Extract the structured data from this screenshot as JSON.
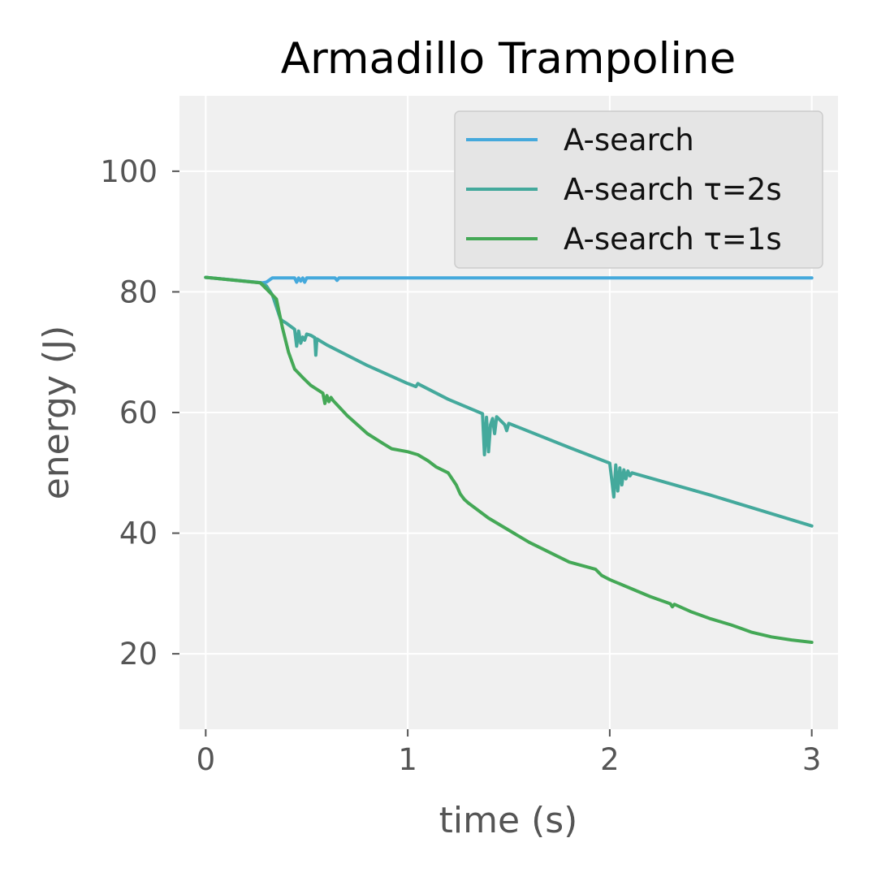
{
  "chart_data": {
    "type": "line",
    "title": "Armadillo Trampoline",
    "xlabel": "time (s)",
    "ylabel": "energy (J)",
    "xlim": [
      -0.13,
      3.13
    ],
    "ylim": [
      7.5,
      112.5
    ],
    "xticks": [
      0,
      1,
      2,
      3
    ],
    "yticks": [
      20,
      40,
      60,
      80,
      100
    ],
    "xtick_labels": [
      "0",
      "1",
      "2",
      "3"
    ],
    "ytick_labels": [
      "20",
      "40",
      "60",
      "80",
      "100"
    ],
    "grid": true,
    "legend_position": "top-right",
    "series": [
      {
        "name": "A-search",
        "color": "#45a9dc",
        "x": [
          0,
          0.28,
          0.3,
          0.33,
          0.36,
          0.4,
          0.44,
          0.45,
          0.46,
          0.47,
          0.48,
          0.49,
          0.5,
          0.52,
          0.6,
          0.64,
          0.65,
          0.66,
          0.8,
          1.0,
          1.5,
          2.0,
          2.5,
          3.0
        ],
        "y": [
          82.4,
          81.5,
          81.6,
          82.3,
          82.3,
          82.3,
          82.3,
          81.6,
          82.3,
          81.8,
          82.3,
          81.6,
          82.3,
          82.3,
          82.3,
          82.3,
          81.9,
          82.3,
          82.3,
          82.3,
          82.3,
          82.3,
          82.3,
          82.3
        ]
      },
      {
        "name": "A-search τ=2s",
        "color": "#44a99c",
        "x": [
          0,
          0.27,
          0.3,
          0.33,
          0.35,
          0.37,
          0.38,
          0.4,
          0.44,
          0.45,
          0.46,
          0.47,
          0.48,
          0.49,
          0.5,
          0.52,
          0.54,
          0.545,
          0.55,
          0.56,
          0.6,
          0.8,
          1.0,
          1.04,
          1.05,
          1.06,
          1.2,
          1.37,
          1.38,
          1.39,
          1.4,
          1.41,
          1.42,
          1.43,
          1.44,
          1.48,
          1.49,
          1.5,
          1.8,
          2.0,
          2.02,
          2.03,
          2.04,
          2.05,
          2.06,
          2.07,
          2.08,
          2.09,
          2.1,
          2.11,
          2.5,
          3.0
        ],
        "y": [
          82.4,
          81.5,
          81.0,
          79.5,
          77.5,
          75.5,
          75.2,
          74.8,
          73.8,
          71.0,
          73.5,
          71.5,
          72.5,
          72.0,
          73.0,
          72.8,
          72.4,
          69.5,
          72.2,
          72.0,
          71.2,
          67.8,
          64.8,
          64.3,
          64.8,
          64.6,
          62.2,
          59.8,
          53.0,
          59.2,
          53.5,
          58.0,
          59.0,
          56.5,
          59.3,
          58.0,
          57.0,
          58.2,
          54.2,
          51.6,
          46.0,
          51.3,
          47.0,
          50.8,
          48.0,
          50.5,
          49.0,
          50.3,
          49.5,
          50.0,
          46.3,
          41.2
        ]
      },
      {
        "name": "A-search τ=1s",
        "color": "#44a856",
        "x": [
          0,
          0.27,
          0.3,
          0.35,
          0.38,
          0.41,
          0.44,
          0.48,
          0.52,
          0.58,
          0.59,
          0.6,
          0.61,
          0.62,
          0.63,
          0.7,
          0.8,
          0.88,
          0.92,
          1.0,
          1.05,
          1.1,
          1.14,
          1.2,
          1.24,
          1.26,
          1.28,
          1.3,
          1.4,
          1.6,
          1.8,
          1.93,
          1.96,
          2.0,
          2.2,
          2.3,
          2.31,
          2.32,
          2.4,
          2.5,
          2.6,
          2.65,
          2.7,
          2.8,
          2.9,
          3.0
        ],
        "y": [
          82.4,
          81.5,
          80.5,
          78.8,
          74.0,
          70.0,
          67.2,
          65.8,
          64.5,
          63.2,
          61.5,
          62.8,
          61.8,
          62.5,
          62.0,
          59.5,
          56.5,
          54.8,
          54.0,
          53.5,
          53.0,
          52.0,
          51.0,
          50.0,
          48.0,
          46.5,
          45.6,
          45.0,
          42.5,
          38.5,
          35.2,
          34.0,
          33.0,
          32.3,
          29.5,
          28.3,
          27.8,
          28.2,
          27.0,
          25.8,
          24.8,
          24.2,
          23.6,
          22.8,
          22.3,
          21.9
        ]
      }
    ]
  }
}
